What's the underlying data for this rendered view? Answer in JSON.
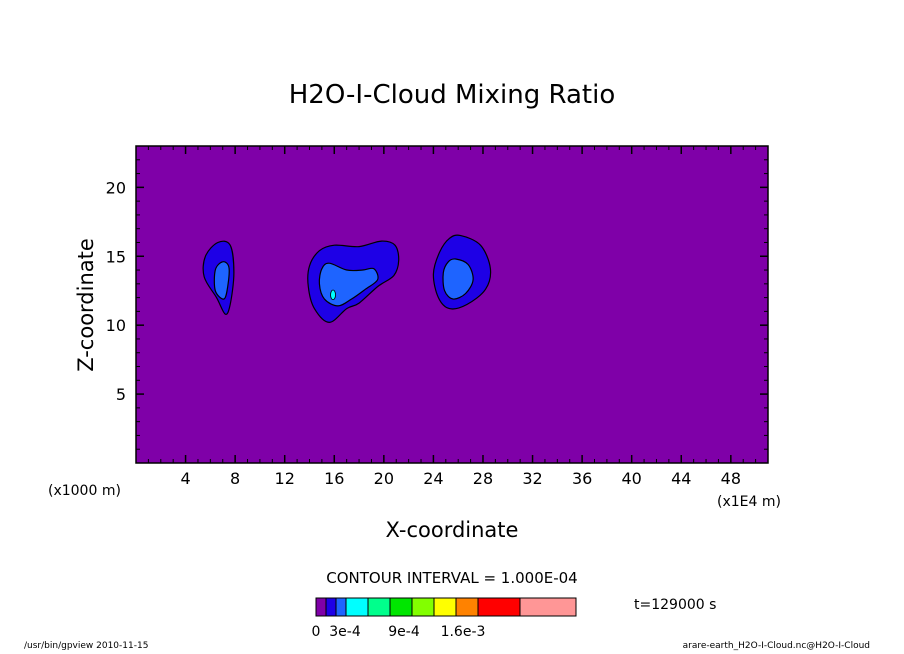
{
  "chart_data": {
    "type": "contour",
    "title": "H2O-I-Cloud Mixing Ratio",
    "xlabel": "X-coordinate",
    "ylabel": "Z-coordinate",
    "x_unit_left": "(x1000 m)",
    "x_unit_right": "(x1E4 m)",
    "xlim": [
      0,
      51
    ],
    "ylim": [
      0,
      23
    ],
    "x_ticks": [
      4,
      8,
      12,
      16,
      20,
      24,
      28,
      32,
      36,
      40,
      44,
      48
    ],
    "y_ticks": [
      5,
      10,
      15,
      20
    ],
    "contour_interval_label": "CONTOUR INTERVAL = 1.000E-04",
    "time_label": "t=129000 s",
    "background_color": "#7f00a8",
    "colorbar": {
      "colors": [
        "#7f00a8",
        "#1e00e6",
        "#1e64ff",
        "#00ffff",
        "#00ff8c",
        "#00e600",
        "#82ff00",
        "#ffff00",
        "#ff8200",
        "#ff0000",
        "#ff9696"
      ],
      "tick_labels": [
        "0",
        "3e-4",
        "9e-4",
        "1.6e-3"
      ]
    },
    "cells": [
      {
        "name": "cell-1",
        "levels": [
          [
            [
              6.6,
              16.0
            ],
            [
              7.6,
              15.8
            ],
            [
              7.9,
              13.8
            ],
            [
              7.6,
              11.5
            ],
            [
              7.2,
              10.8
            ],
            [
              6.5,
              12.0
            ],
            [
              5.5,
              13.5
            ],
            [
              5.6,
              15.0
            ]
          ],
          [
            [
              7.0,
              14.6
            ],
            [
              7.5,
              14.2
            ],
            [
              7.4,
              12.8
            ],
            [
              7.1,
              11.9
            ],
            [
              6.4,
              12.5
            ],
            [
              6.4,
              14.0
            ]
          ]
        ]
      },
      {
        "name": "cell-2",
        "levels": [
          [
            [
              16.0,
              15.8
            ],
            [
              18.0,
              15.7
            ],
            [
              19.8,
              16.1
            ],
            [
              20.9,
              15.8
            ],
            [
              21.2,
              14.7
            ],
            [
              20.8,
              13.6
            ],
            [
              19.5,
              12.8
            ],
            [
              18.0,
              11.6
            ],
            [
              17.0,
              11.2
            ],
            [
              15.6,
              10.2
            ],
            [
              14.4,
              11.2
            ],
            [
              13.9,
              12.8
            ],
            [
              14.0,
              14.3
            ],
            [
              14.8,
              15.4
            ]
          ],
          [
            [
              15.6,
              14.5
            ],
            [
              17.0,
              14.0
            ],
            [
              18.3,
              14.0
            ],
            [
              19.2,
              14.1
            ],
            [
              19.5,
              13.3
            ],
            [
              18.5,
              12.6
            ],
            [
              17.4,
              11.9
            ],
            [
              16.3,
              11.4
            ],
            [
              15.2,
              11.9
            ],
            [
              14.8,
              13.0
            ],
            [
              15.0,
              14.1
            ]
          ]
        ]
      },
      {
        "name": "cell-3",
        "levels": [
          [
            [
              26.2,
              16.5
            ],
            [
              27.8,
              15.8
            ],
            [
              28.6,
              14.1
            ],
            [
              28.2,
              12.6
            ],
            [
              26.7,
              11.5
            ],
            [
              25.3,
              11.2
            ],
            [
              24.4,
              12.0
            ],
            [
              24.0,
              13.7
            ],
            [
              24.5,
              15.3
            ],
            [
              25.3,
              16.3
            ]
          ],
          [
            [
              25.8,
              14.8
            ],
            [
              26.8,
              14.4
            ],
            [
              27.2,
              13.3
            ],
            [
              26.6,
              12.3
            ],
            [
              25.6,
              11.9
            ],
            [
              24.9,
              12.5
            ],
            [
              24.8,
              13.8
            ],
            [
              25.2,
              14.6
            ]
          ]
        ]
      }
    ],
    "small_blobs": [
      {
        "x": 15.9,
        "y": 12.2,
        "rx": 0.2,
        "ry": 0.35,
        "color": "#00ffff"
      }
    ]
  },
  "footer": {
    "left": "/usr/bin/gpview  2010-11-15",
    "right": "arare-earth_H2O-I-Cloud.nc@H2O-I-Cloud"
  }
}
